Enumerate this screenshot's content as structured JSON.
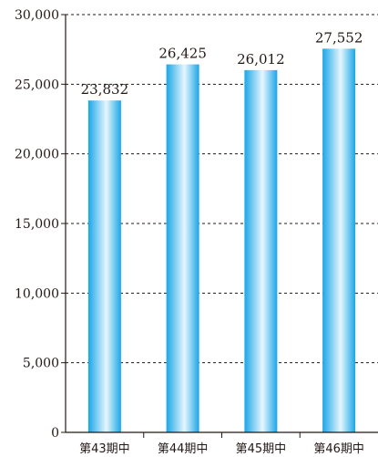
{
  "chart_data": {
    "type": "bar",
    "categories": [
      "第43期中",
      "第44期中",
      "第45期中",
      "第46期中"
    ],
    "values": [
      23832,
      26425,
      26012,
      27552
    ],
    "data_labels": [
      "23,832",
      "26,425",
      "26,012",
      "27,552"
    ],
    "y_tick_labels": [
      "0",
      "5,000",
      "10,000",
      "15,000",
      "20,000",
      "25,000",
      "30,000"
    ],
    "y_ticks": [
      0,
      5000,
      10000,
      15000,
      20000,
      25000,
      30000
    ],
    "ylim": [
      0,
      30000
    ],
    "title": "",
    "xlabel": "",
    "ylabel": "",
    "grid": "horizontal dashed",
    "legend": "none",
    "colors": {
      "bar_edge": "#1aa6e6",
      "bar_center": "#e6f6fe",
      "grid": "#231815",
      "axis": "#231815",
      "text": "#231815"
    }
  }
}
